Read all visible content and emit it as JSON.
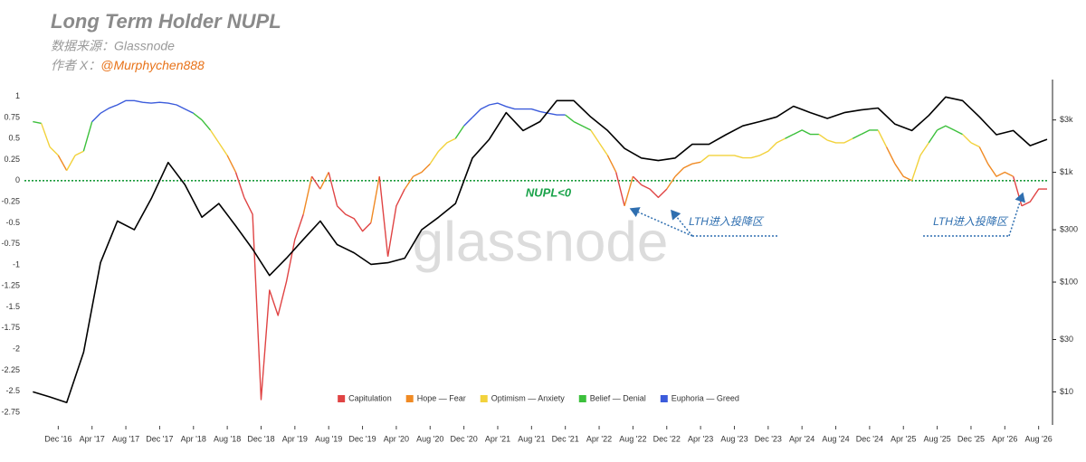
{
  "chart_data": {
    "type": "line",
    "title": "Long Term Holder NUPL",
    "subtitle": "数据来源：Glassnode",
    "author_label": "作者 X：",
    "author_handle": "@Murphychen888",
    "watermark": "glassnode",
    "annotations": [
      {
        "text": "NUPL<0"
      },
      {
        "text": "LTH进入投降区"
      },
      {
        "text": "LTH进入投降区"
      }
    ],
    "legend": "bottom",
    "xlim": [
      "2016-08",
      "2026-09"
    ],
    "xticks": [
      {
        "value": "2016-12",
        "label": "Dec '16"
      },
      {
        "value": "2017-04",
        "label": "Apr '17"
      },
      {
        "value": "2017-08",
        "label": "Aug '17"
      },
      {
        "value": "2017-12",
        "label": "Dec '17"
      },
      {
        "value": "2018-04",
        "label": "Apr '18"
      },
      {
        "value": "2018-08",
        "label": "Aug '18"
      },
      {
        "value": "2018-12",
        "label": "Dec '18"
      },
      {
        "value": "2019-04",
        "label": "Apr '19"
      },
      {
        "value": "2019-08",
        "label": "Aug '19"
      },
      {
        "value": "2019-12",
        "label": "Dec '19"
      },
      {
        "value": "2020-04",
        "label": "Apr '20"
      },
      {
        "value": "2020-08",
        "label": "Aug '20"
      },
      {
        "value": "2020-12",
        "label": "Dec '20"
      },
      {
        "value": "2021-04",
        "label": "Apr '21"
      },
      {
        "value": "2021-08",
        "label": "Aug '21"
      },
      {
        "value": "2021-12",
        "label": "Dec '21"
      },
      {
        "value": "2022-04",
        "label": "Apr '22"
      },
      {
        "value": "2022-08",
        "label": "Aug '22"
      },
      {
        "value": "2022-12",
        "label": "Dec '22"
      },
      {
        "value": "2023-04",
        "label": "Apr '23"
      },
      {
        "value": "2023-08",
        "label": "Aug '23"
      },
      {
        "value": "2023-12",
        "label": "Dec '23"
      },
      {
        "value": "2024-04",
        "label": "Apr '24"
      },
      {
        "value": "2024-08",
        "label": "Aug '24"
      },
      {
        "value": "2024-12",
        "label": "Dec '24"
      },
      {
        "value": "2025-04",
        "label": "Apr '25"
      },
      {
        "value": "2025-08",
        "label": "Aug '25"
      },
      {
        "value": "2025-12",
        "label": "Dec '25"
      },
      {
        "value": "2026-04",
        "label": "Apr '26"
      },
      {
        "value": "2026-08",
        "label": "Aug '26"
      }
    ],
    "ylim": [
      -2.9,
      1.2
    ],
    "yticks": [
      1,
      0.75,
      0.5,
      0.25,
      0,
      -0.25,
      -0.5,
      -0.75,
      -1,
      -1.25,
      -1.5,
      -1.75,
      -2,
      -2.25,
      -2.5,
      -2.75
    ],
    "y2lim": [
      5,
      7000
    ],
    "y2_log": true,
    "y2ticks": [
      {
        "value": 3000,
        "label": "$3k"
      },
      {
        "value": 1000,
        "label": "$1k"
      },
      {
        "value": 300,
        "label": "$300"
      },
      {
        "value": 100,
        "label": "$100"
      },
      {
        "value": 30,
        "label": "$30"
      },
      {
        "value": 10,
        "label": "$10"
      }
    ],
    "x": [
      "2016-09",
      "2016-10",
      "2016-11",
      "2016-12",
      "2017-01",
      "2017-02",
      "2017-03",
      "2017-04",
      "2017-05",
      "2017-06",
      "2017-07",
      "2017-08",
      "2017-09",
      "2017-10",
      "2017-11",
      "2017-12",
      "2018-01",
      "2018-02",
      "2018-03",
      "2018-04",
      "2018-05",
      "2018-06",
      "2018-07",
      "2018-08",
      "2018-09",
      "2018-10",
      "2018-11",
      "2018-12",
      "2019-01",
      "2019-02",
      "2019-03",
      "2019-04",
      "2019-05",
      "2019-06",
      "2019-07",
      "2019-08",
      "2019-09",
      "2019-10",
      "2019-11",
      "2019-12",
      "2020-01",
      "2020-02",
      "2020-03",
      "2020-04",
      "2020-05",
      "2020-06",
      "2020-07",
      "2020-08",
      "2020-09",
      "2020-10",
      "2020-11",
      "2020-12",
      "2021-01",
      "2021-02",
      "2021-03",
      "2021-04",
      "2021-05",
      "2021-06",
      "2021-07",
      "2021-08",
      "2021-09",
      "2021-10",
      "2021-11",
      "2021-12",
      "2022-01",
      "2022-02",
      "2022-03",
      "2022-04",
      "2022-05",
      "2022-06",
      "2022-07",
      "2022-08",
      "2022-09",
      "2022-10",
      "2022-11",
      "2022-12",
      "2023-01",
      "2023-02",
      "2023-03",
      "2023-04",
      "2023-05",
      "2023-06",
      "2023-07",
      "2023-08",
      "2023-09",
      "2023-10",
      "2023-11",
      "2023-12",
      "2024-01",
      "2024-02",
      "2024-03",
      "2024-04",
      "2024-05",
      "2024-06",
      "2024-07",
      "2024-08",
      "2024-09",
      "2024-10",
      "2024-11",
      "2024-12",
      "2025-01",
      "2025-02",
      "2025-03",
      "2025-04",
      "2025-05",
      "2025-06",
      "2025-07",
      "2025-08",
      "2025-09",
      "2025-10",
      "2025-11",
      "2025-12",
      "2026-01",
      "2026-02",
      "2026-03",
      "2026-04",
      "2026-05",
      "2026-06",
      "2026-07",
      "2026-08",
      "2026-09"
    ],
    "series": [
      {
        "name": "Capitulation",
        "color": "#e04444",
        "values": [
          null,
          null,
          null,
          null,
          null,
          null,
          null,
          null,
          null,
          null,
          null,
          null,
          null,
          null,
          null,
          null,
          null,
          null,
          null,
          null,
          null,
          null,
          null,
          null,
          null,
          -0.2,
          -0.4,
          -2.6,
          -1.3,
          -1.6,
          -1.2,
          -0.7,
          -0.4,
          null,
          -0.1,
          null,
          -0.3,
          -0.4,
          -0.45,
          -0.6,
          -0.5,
          null,
          -0.9,
          -0.3,
          -0.1,
          null,
          null,
          null,
          null,
          null,
          null,
          null,
          null,
          null,
          null,
          null,
          null,
          null,
          null,
          null,
          null,
          null,
          null,
          null,
          null,
          null,
          null,
          null,
          null,
          null,
          -0.3,
          null,
          -0.05,
          -0.1,
          -0.2,
          -0.1,
          null,
          null,
          null,
          null,
          null,
          null,
          null,
          null,
          null,
          null,
          null,
          null,
          null,
          null,
          null,
          null,
          null,
          null,
          null,
          null,
          null,
          null,
          null,
          null,
          null,
          null,
          null,
          null,
          null,
          null,
          null,
          null,
          null,
          null,
          null,
          null,
          null,
          null,
          null,
          null,
          null,
          -0.3,
          -0.25,
          -0.1,
          -0.1
        ]
      },
      {
        "name": "Hope — Fear",
        "color": "#f08a24",
        "values": [
          null,
          null,
          null,
          null,
          0.12,
          null,
          null,
          null,
          null,
          null,
          null,
          null,
          null,
          null,
          null,
          null,
          null,
          null,
          null,
          null,
          null,
          null,
          null,
          null,
          0.1,
          null,
          null,
          null,
          null,
          null,
          null,
          null,
          null,
          0.05,
          null,
          0.1,
          null,
          null,
          null,
          null,
          null,
          0.05,
          null,
          null,
          null,
          0.05,
          0.1,
          0.2,
          null,
          null,
          null,
          null,
          null,
          null,
          null,
          null,
          null,
          null,
          null,
          null,
          null,
          null,
          null,
          null,
          null,
          null,
          null,
          null,
          null,
          0.1,
          null,
          0.05,
          null,
          null,
          null,
          null,
          0.05,
          0.15,
          0.2,
          0.22,
          null,
          null,
          null,
          null,
          null,
          null,
          null,
          null,
          null,
          null,
          null,
          null,
          null,
          null,
          null,
          null,
          null,
          null,
          null,
          null,
          null,
          null,
          0.2,
          0.05,
          0,
          null,
          null,
          null,
          null,
          null,
          null,
          null,
          null,
          0.2,
          0.05,
          0.1,
          0.05,
          null,
          null,
          null,
          null
        ]
      },
      {
        "name": "Optimism — Anxiety",
        "color": "#f2d23c",
        "values": [
          null,
          null,
          0.4,
          0.3,
          null,
          0.3,
          0.35,
          null,
          null,
          null,
          null,
          null,
          null,
          null,
          null,
          null,
          null,
          null,
          null,
          null,
          null,
          null,
          0.45,
          0.3,
          null,
          null,
          null,
          null,
          null,
          null,
          null,
          null,
          null,
          null,
          null,
          null,
          null,
          null,
          null,
          null,
          null,
          null,
          null,
          null,
          null,
          null,
          null,
          null,
          0.35,
          0.45,
          0.5,
          null,
          null,
          null,
          null,
          null,
          null,
          null,
          null,
          null,
          null,
          null,
          null,
          null,
          null,
          null,
          null,
          0.45,
          0.3,
          null,
          null,
          null,
          null,
          null,
          null,
          null,
          null,
          null,
          null,
          null,
          0.3,
          0.3,
          0.3,
          0.3,
          0.27,
          0.27,
          0.3,
          0.35,
          0.45,
          0.5,
          null,
          null,
          null,
          null,
          0.48,
          0.45,
          0.45,
          0.5,
          null,
          null,
          null,
          0.4,
          null,
          null,
          null,
          0.3,
          0.45,
          null,
          null,
          null,
          null,
          0.45,
          0.4,
          null,
          null,
          null,
          null,
          null,
          null,
          null,
          null
        ]
      },
      {
        "name": "Belief — Denial",
        "color": "#3cc03c",
        "values": [
          0.7,
          0.68,
          null,
          null,
          null,
          null,
          null,
          0.7,
          null,
          null,
          null,
          null,
          null,
          null,
          null,
          null,
          null,
          null,
          null,
          null,
          0.72,
          0.6,
          null,
          null,
          null,
          null,
          null,
          null,
          null,
          null,
          null,
          null,
          null,
          null,
          null,
          null,
          null,
          null,
          null,
          null,
          null,
          null,
          null,
          null,
          null,
          null,
          null,
          null,
          null,
          null,
          null,
          0.65,
          null,
          null,
          null,
          null,
          null,
          null,
          null,
          null,
          null,
          null,
          null,
          null,
          0.7,
          0.65,
          0.6,
          null,
          null,
          null,
          null,
          null,
          null,
          null,
          null,
          null,
          null,
          null,
          null,
          null,
          null,
          null,
          null,
          null,
          null,
          null,
          null,
          null,
          null,
          null,
          0.55,
          0.6,
          0.55,
          0.55,
          null,
          null,
          null,
          null,
          0.55,
          0.6,
          0.6,
          null,
          null,
          null,
          null,
          null,
          null,
          0.6,
          0.65,
          0.6,
          0.55,
          null,
          null,
          null,
          null,
          null,
          null,
          null,
          null,
          null,
          null
        ]
      },
      {
        "name": "Euphoria — Greed",
        "color": "#3b5bdb",
        "values": [
          null,
          null,
          null,
          null,
          null,
          null,
          null,
          null,
          0.8,
          0.86,
          0.9,
          0.95,
          0.95,
          0.93,
          0.92,
          0.93,
          0.92,
          0.9,
          0.85,
          0.8,
          null,
          null,
          null,
          null,
          null,
          null,
          null,
          null,
          null,
          null,
          null,
          null,
          null,
          null,
          null,
          null,
          null,
          null,
          null,
          null,
          null,
          null,
          null,
          null,
          null,
          null,
          null,
          null,
          null,
          null,
          null,
          null,
          0.75,
          0.85,
          0.9,
          0.92,
          0.88,
          0.85,
          0.85,
          0.85,
          0.82,
          0.8,
          0.78,
          0.78,
          null,
          null,
          null,
          null,
          null,
          null,
          null,
          null,
          null,
          null,
          null,
          null,
          null,
          null,
          null,
          null,
          null,
          null,
          null,
          null,
          null,
          null,
          null,
          null,
          null,
          null,
          null,
          null,
          null,
          null,
          null,
          null,
          null,
          null,
          null,
          null,
          null,
          null,
          null,
          null,
          null,
          null,
          null,
          null,
          null,
          null,
          null,
          null,
          null,
          null,
          null,
          null,
          null,
          null,
          null,
          null,
          null
        ]
      }
    ],
    "price": {
      "color": "#000000",
      "axis": "y2",
      "x": [
        "2016-09",
        "2016-11",
        "2017-01",
        "2017-03",
        "2017-05",
        "2017-07",
        "2017-09",
        "2017-11",
        "2018-01",
        "2018-03",
        "2018-05",
        "2018-07",
        "2018-09",
        "2018-11",
        "2019-01",
        "2019-03",
        "2019-05",
        "2019-07",
        "2019-09",
        "2019-11",
        "2020-01",
        "2020-03",
        "2020-05",
        "2020-07",
        "2020-09",
        "2020-11",
        "2021-01",
        "2021-03",
        "2021-05",
        "2021-07",
        "2021-09",
        "2021-11",
        "2022-01",
        "2022-03",
        "2022-05",
        "2022-07",
        "2022-09",
        "2022-11",
        "2023-01",
        "2023-03",
        "2023-05",
        "2023-07",
        "2023-09",
        "2023-11",
        "2024-01",
        "2024-03",
        "2024-05",
        "2024-07",
        "2024-09",
        "2024-11",
        "2025-01",
        "2025-03",
        "2025-05",
        "2025-07",
        "2025-09",
        "2025-11",
        "2026-01",
        "2026-03",
        "2026-05",
        "2026-07",
        "2026-09"
      ],
      "values": [
        10,
        9,
        8,
        23,
        150,
        360,
        300,
        575,
        1230,
        770,
        390,
        520,
        325,
        200,
        115,
        165,
        245,
        360,
        220,
        185,
        145,
        150,
        165,
        300,
        390,
        520,
        1350,
        2000,
        3500,
        2400,
        2900,
        4500,
        4500,
        3200,
        2400,
        1650,
        1350,
        1280,
        1350,
        1800,
        1800,
        2200,
        2650,
        2900,
        3200,
        4000,
        3500,
        3100,
        3500,
        3700,
        3850,
        2750,
        2400,
        3300,
        4850,
        4500,
        3200,
        2200,
        2400,
        1750,
        2000
      ]
    }
  }
}
